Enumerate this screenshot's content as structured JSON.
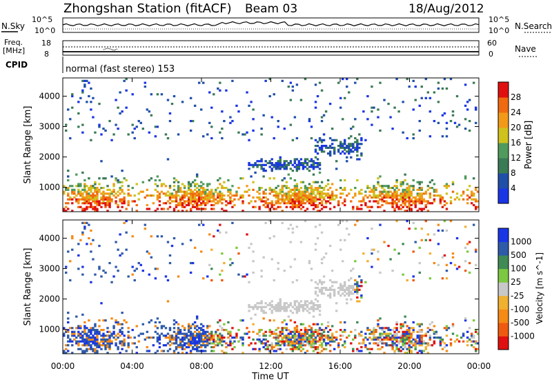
{
  "header": {
    "title": "Zhongshan Station (fitACF)",
    "beam": "Beam 03",
    "date": "18/Aug/2012"
  },
  "top_panels": {
    "nsky_label": "N.Sky",
    "nsky_ticks": [
      "10^5",
      "10^0"
    ],
    "nsearch_label": "N.Search",
    "nsearch_ticks": [
      "10^5",
      "10^0"
    ],
    "freq_label": "Freq.",
    "freq_unit": "[MHz]",
    "freq_ticks": [
      "18",
      "8"
    ],
    "nave_label": "Nave",
    "nave_ticks": [
      "60",
      "0"
    ],
    "cpid_label": "CPID",
    "cpid_text": "normal (fast stereo) 153"
  },
  "colors": {
    "power_scale": [
      "#1a35e6",
      "#1f4fa8",
      "#3a7a55",
      "#4f9a5c",
      "#cfc21c",
      "#f29a18",
      "#f06a10",
      "#e01010"
    ],
    "velocity_scale": [
      "#e01010",
      "#f05a10",
      "#f58a15",
      "#f0b030",
      "#c8c8c8",
      "#7cc840",
      "#3f8a55",
      "#2e5aa8",
      "#1a35e6"
    ]
  },
  "chart_data": [
    {
      "type": "heatmap",
      "name": "power",
      "ylabel": "Slant Range [km]",
      "xlabel": "",
      "yticks": [
        "1000",
        "2000",
        "3000",
        "4000"
      ],
      "ylim": [
        200,
        4600
      ],
      "xticks": [
        "00:00",
        "04:00",
        "08:00",
        "12:00",
        "16:00",
        "20:00",
        "00:00"
      ],
      "colorbar_label": "Power [dB]",
      "colorbar_ticks": [
        "4",
        "8",
        "12",
        "16",
        "20",
        "24",
        "28"
      ],
      "clim": [
        0,
        30
      ]
    },
    {
      "type": "heatmap",
      "name": "velocity",
      "ylabel": "Slant Range [km]",
      "xlabel": "Time UT",
      "yticks": [
        "1000",
        "2000",
        "3000",
        "4000"
      ],
      "ylim": [
        200,
        4600
      ],
      "xticks": [
        "00:00",
        "04:00",
        "08:00",
        "12:00",
        "16:00",
        "20:00",
        "00:00"
      ],
      "colorbar_label": "Velocity [m s^-1]",
      "colorbar_ticks": [
        "1000",
        "500",
        "100",
        "25",
        "-25",
        "-100",
        "-500",
        "-1000"
      ]
    }
  ]
}
